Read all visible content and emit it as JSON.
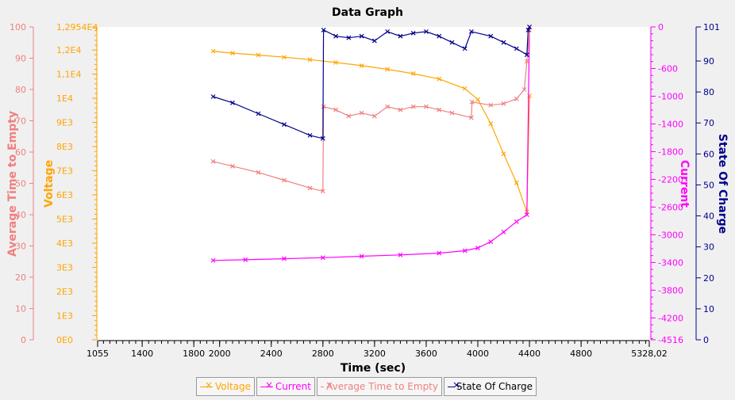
{
  "chart_data": {
    "type": "line",
    "title": "Data Graph",
    "xlabel": "Time (sec)",
    "xlim": [
      1055,
      5328.02
    ],
    "x_ticks": [
      "1055",
      "1400",
      "1800",
      "2000",
      "2400",
      "2800",
      "3200",
      "3600",
      "4000",
      "4400",
      "4800",
      "5328,02"
    ],
    "x_tick_values": [
      1055,
      1400,
      1800,
      2000,
      2400,
      2800,
      3200,
      3600,
      4000,
      4400,
      4800,
      5328.02
    ],
    "axes": {
      "ate": {
        "label": "Average Time to Empty",
        "color": "#f08080",
        "range": [
          0,
          100
        ],
        "ticks": [
          "0",
          "10",
          "20",
          "30",
          "40",
          "50",
          "60",
          "70",
          "80",
          "90",
          "100"
        ],
        "tick_values": [
          0,
          10,
          20,
          30,
          40,
          50,
          60,
          70,
          80,
          90,
          100
        ]
      },
      "voltage": {
        "label": "Voltage",
        "color": "#ffa500",
        "range": [
          0,
          12954
        ],
        "ticks": [
          "0E0",
          "1E3",
          "2E3",
          "3E3",
          "4E3",
          "5E3",
          "6E3",
          "7E3",
          "8E3",
          "9E3",
          "1E4",
          "1,1E4",
          "1,2E4",
          "1,2954E4"
        ],
        "tick_values": [
          0,
          1000,
          2000,
          3000,
          4000,
          5000,
          6000,
          7000,
          8000,
          9000,
          10000,
          11000,
          12000,
          12954
        ]
      },
      "current": {
        "label": "Current",
        "color": "#ff00ff",
        "range": [
          -4516,
          0
        ],
        "ticks": [
          "0",
          "-600",
          "-1000",
          "-1400",
          "-1800",
          "-2200",
          "-2600",
          "-3000",
          "-3400",
          "-3800",
          "-4200",
          "-4516"
        ],
        "tick_values": [
          0,
          -600,
          -1000,
          -1400,
          -1800,
          -2200,
          -2600,
          -3000,
          -3400,
          -3800,
          -4200,
          -4516
        ]
      },
      "soc": {
        "label": "State Of Charge",
        "color": "#00008b",
        "range": [
          0,
          101
        ],
        "ticks": [
          "0",
          "10",
          "20",
          "30",
          "40",
          "50",
          "60",
          "70",
          "80",
          "90",
          "101"
        ],
        "tick_values": [
          0,
          10,
          20,
          30,
          40,
          50,
          60,
          70,
          80,
          90,
          101
        ]
      }
    },
    "series": [
      {
        "name": "Voltage",
        "axis": "voltage",
        "color": "#ffa500",
        "x": [
          1950,
          2100,
          2300,
          2500,
          2700,
          2900,
          3100,
          3300,
          3500,
          3700,
          3900,
          4000,
          4100,
          4200,
          4300,
          4380,
          4400
        ],
        "y": [
          11950,
          11870,
          11790,
          11700,
          11600,
          11480,
          11350,
          11200,
          11020,
          10800,
          10400,
          9950,
          8950,
          7700,
          6500,
          5300,
          10100
        ]
      },
      {
        "name": "Current",
        "axis": "current",
        "color": "#ff00ff",
        "x": [
          1950,
          2200,
          2500,
          2800,
          3100,
          3400,
          3700,
          3900,
          4000,
          4100,
          4200,
          4300,
          4380,
          4400
        ],
        "y": [
          -3370,
          -3360,
          -3345,
          -3330,
          -3310,
          -3290,
          -3265,
          -3230,
          -3190,
          -3100,
          -2960,
          -2810,
          -2710,
          0
        ]
      },
      {
        "name": "Average Time to Empty",
        "axis": "ate",
        "color": "#f08080",
        "x": [
          1950,
          2100,
          2300,
          2500,
          2700,
          2800,
          2805,
          2900,
          3000,
          3100,
          3200,
          3300,
          3400,
          3500,
          3600,
          3700,
          3800,
          3950,
          3955,
          4100,
          4200,
          4300,
          4360,
          4380,
          4400
        ],
        "y": [
          57,
          55.5,
          53.5,
          51,
          48.5,
          47.5,
          74.5,
          73.5,
          71.5,
          72.5,
          71.5,
          74.5,
          73.5,
          74.5,
          74.5,
          73.5,
          72.5,
          71,
          76,
          75,
          75.5,
          77,
          80,
          89,
          99
        ]
      },
      {
        "name": "State Of Charge",
        "axis": "soc",
        "color": "#00008b",
        "x": [
          1950,
          2100,
          2300,
          2500,
          2700,
          2800,
          2805,
          2900,
          3000,
          3100,
          3200,
          3300,
          3400,
          3500,
          3600,
          3700,
          3800,
          3900,
          3950,
          4100,
          4200,
          4300,
          4380,
          4390,
          4400
        ],
        "y": [
          78.5,
          76.5,
          73,
          69.5,
          66,
          65,
          100,
          98,
          97.5,
          98,
          96.5,
          99.5,
          98,
          99,
          99.5,
          98,
          96,
          94,
          99.5,
          98,
          96,
          94,
          92,
          100,
          101
        ]
      }
    ],
    "legend": {
      "position": "bottom"
    }
  }
}
